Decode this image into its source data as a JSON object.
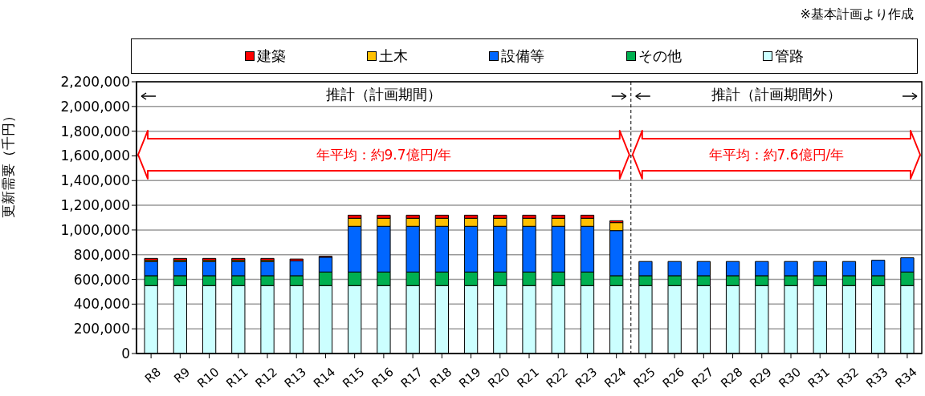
{
  "chart_data": {
    "type": "bar",
    "stacked": true,
    "ylabel": "更新需要（千円）",
    "categories": [
      "R8",
      "R9",
      "R10",
      "R11",
      "R12",
      "R13",
      "R14",
      "R15",
      "R16",
      "R17",
      "R18",
      "R19",
      "R20",
      "R21",
      "R22",
      "R23",
      "R24",
      "R25",
      "R26",
      "R27",
      "R28",
      "R29",
      "R30",
      "R31",
      "R32",
      "R33",
      "R34"
    ],
    "series": [
      {
        "name": "管路",
        "color": "#ccffff",
        "values": [
          550000,
          550000,
          550000,
          550000,
          550000,
          550000,
          550000,
          550000,
          550000,
          550000,
          550000,
          550000,
          550000,
          550000,
          550000,
          550000,
          550000,
          550000,
          550000,
          550000,
          550000,
          550000,
          550000,
          550000,
          550000,
          550000,
          550000
        ]
      },
      {
        "name": "その他",
        "color": "#00b050",
        "values": [
          80000,
          80000,
          80000,
          80000,
          80000,
          80000,
          110000,
          110000,
          110000,
          110000,
          110000,
          110000,
          110000,
          110000,
          110000,
          110000,
          80000,
          80000,
          80000,
          80000,
          80000,
          80000,
          80000,
          80000,
          80000,
          80000,
          110000
        ]
      },
      {
        "name": "設備等",
        "color": "#0066ff",
        "values": [
          115000,
          115000,
          115000,
          115000,
          115000,
          120000,
          120000,
          370000,
          370000,
          370000,
          370000,
          370000,
          370000,
          370000,
          370000,
          370000,
          365000,
          115000,
          115000,
          115000,
          115000,
          115000,
          115000,
          115000,
          115000,
          125000,
          115000
        ]
      },
      {
        "name": "土木",
        "color": "#ffc000",
        "values": [
          10000,
          10000,
          10000,
          10000,
          10000,
          null,
          null,
          65000,
          65000,
          65000,
          65000,
          65000,
          65000,
          65000,
          65000,
          65000,
          65000,
          0,
          0,
          0,
          0,
          0,
          0,
          0,
          0,
          0,
          0
        ]
      },
      {
        "name": "建築",
        "color": "#ff0000",
        "values": [
          15000,
          15000,
          15000,
          15000,
          15000,
          15000,
          7000,
          25000,
          25000,
          25000,
          25000,
          25000,
          25000,
          25000,
          25000,
          25000,
          15000,
          0,
          0,
          0,
          0,
          0,
          0,
          0,
          0,
          0,
          0
        ]
      }
    ],
    "ylim": [
      0,
      2200000
    ],
    "yticks": [
      0,
      {
        "value": 200000,
        "label": "200,000"
      },
      {
        "value": 400000,
        "label": "400,000"
      },
      {
        "value": 600000,
        "label": "600,000"
      },
      {
        "value": 800000,
        "label": "800,000"
      },
      {
        "value": 1000000,
        "label": "1,000,000"
      },
      {
        "value": 1200000,
        "label": "1,200,000"
      },
      {
        "value": 1400000,
        "label": "1,400,000"
      },
      {
        "value": 1600000,
        "label": "1,600,000"
      },
      {
        "value": 1800000,
        "label": "1,800,000"
      },
      {
        "value": 2000000,
        "label": "2,000,000"
      },
      {
        "value": 2200000,
        "label": "2,200,000"
      }
    ],
    "grid": "y",
    "legend": "top",
    "ref_lines": [
      {
        "axis": "x",
        "value": "R25",
        "line_style": "dashed"
      }
    ],
    "annotations": [
      "※基本計画より作成",
      "推計（計画期間）",
      "年平均：約9.7億円/年",
      "推計（計画期間外）",
      "年平均：約7.6億円/年"
    ]
  }
}
